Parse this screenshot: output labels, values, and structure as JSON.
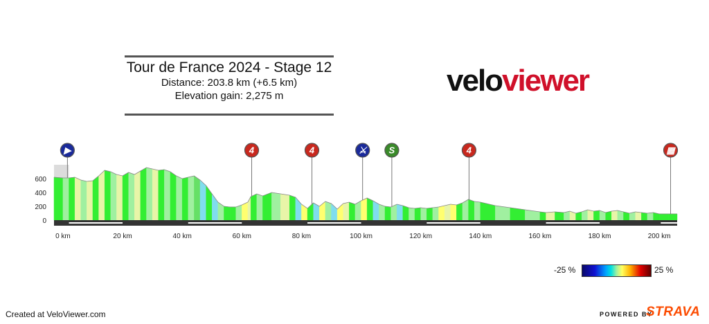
{
  "header": {
    "title": "Tour de France 2024 - Stage 12",
    "distance": "Distance: 203.8 km (+6.5 km)",
    "elevation": "Elevation gain: 2,275 m"
  },
  "logo": {
    "part1": "velo",
    "part2": "viewer",
    "colors": {
      "velo": "#111111",
      "viewer": "#d0102a"
    }
  },
  "chart_data": {
    "type": "area",
    "xlabel": "",
    "ylabel": "",
    "xlim": [
      -3,
      206
    ],
    "ylim": [
      0,
      800
    ],
    "x_ticks": [
      0,
      20,
      40,
      60,
      80,
      100,
      120,
      140,
      160,
      180,
      200
    ],
    "x_tick_labels": [
      "0 km",
      "20 km",
      "40 km",
      "60 km",
      "80 km",
      "100 km",
      "120 km",
      "140 km",
      "160 km",
      "180 km",
      "200 km"
    ],
    "y_ticks": [
      0,
      200,
      400,
      600
    ],
    "y_tick_labels": [
      "0",
      "200",
      "400",
      "600"
    ],
    "profile": {
      "x": [
        -3,
        0,
        2,
        4,
        6,
        8,
        10,
        12,
        14,
        16,
        18,
        20,
        22,
        24,
        26,
        28,
        30,
        32,
        34,
        36,
        38,
        40,
        42,
        44,
        46,
        48,
        50,
        52,
        54,
        56,
        58,
        60,
        62,
        63,
        65,
        67,
        70,
        73,
        76,
        78,
        80,
        82,
        84,
        86,
        88,
        90,
        92,
        94,
        96,
        98,
        100,
        102,
        104,
        106,
        108,
        110,
        112,
        114,
        116,
        118,
        120,
        122,
        124,
        126,
        128,
        130,
        132,
        134,
        136,
        138,
        140,
        145,
        150,
        155,
        160,
        162,
        165,
        168,
        170,
        172,
        174,
        176,
        178,
        180,
        182,
        184,
        186,
        188,
        190,
        192,
        194,
        196,
        198,
        200,
        203,
        206
      ],
      "elevation": [
        620,
        610,
        610,
        620,
        580,
        560,
        570,
        640,
        720,
        700,
        660,
        640,
        690,
        660,
        710,
        760,
        740,
        720,
        730,
        700,
        640,
        600,
        620,
        640,
        580,
        500,
        380,
        260,
        200,
        190,
        190,
        220,
        260,
        340,
        380,
        350,
        400,
        380,
        360,
        330,
        230,
        170,
        250,
        200,
        270,
        240,
        160,
        240,
        260,
        230,
        280,
        320,
        280,
        230,
        200,
        190,
        230,
        210,
        180,
        170,
        180,
        170,
        180,
        190,
        210,
        230,
        220,
        250,
        300,
        270,
        260,
        210,
        180,
        150,
        120,
        110,
        120,
        110,
        130,
        100,
        120,
        150,
        130,
        140,
        110,
        130,
        140,
        120,
        100,
        120,
        110,
        100,
        110,
        90,
        90,
        90
      ],
      "grade_colors": [
        "#33ee33",
        "#a0f0a0",
        "#33ee33",
        "#e8f5a8",
        "#a0f0a0",
        "#e8f5a8",
        "#33ee33",
        "#e8f5a8",
        "#33ee33",
        "#a0f0a0",
        "#e8f5a8",
        "#33ee33",
        "#a0f0a0",
        "#e8f5a8",
        "#33ee33",
        "#a0f0a0",
        "#e8f5a8",
        "#33ee33",
        "#a0f0a0",
        "#33ee33",
        "#a0f0a0",
        "#33ee33",
        "#a0f0a0",
        "#66e066",
        "#80ddee",
        "#33ee33",
        "#80ddee",
        "#a0f0a0",
        "#33ee33",
        "#33ee33",
        "#a0f0a0",
        "#ffff70",
        "#e8f5a8",
        "#33ee33",
        "#a0f0a0",
        "#33ee33",
        "#a0f0a0",
        "#e8f5a8",
        "#33ee33",
        "#80ddee",
        "#ffff70",
        "#33ee33",
        "#80ddee",
        "#ffff70",
        "#a0f0a0",
        "#80ddee",
        "#ffff70",
        "#e8f5a8",
        "#33ee33",
        "#a0f0a0",
        "#ffff70",
        "#33ee33",
        "#80ddee",
        "#a0f0a0",
        "#33ee33",
        "#a0f0a0",
        "#80ddee",
        "#33ee33",
        "#a0f0a0",
        "#33ee33",
        "#a0f0a0",
        "#33ee33",
        "#a0f0a0",
        "#ffff70",
        "#e8f5a8",
        "#ffff70",
        "#33ee33",
        "#a0f0a0",
        "#33ee33",
        "#a0f0a0",
        "#33ee33",
        "#a0f0a0",
        "#33ee33",
        "#a0f0a0",
        "#33ee33",
        "#e8f5a8",
        "#33ee33",
        "#a0f0a0",
        "#e8f5a8",
        "#33ee33",
        "#a0f0a0",
        "#e8f5a8",
        "#33ee33",
        "#a0f0a0",
        "#33ee33",
        "#e8f5a8",
        "#a0f0a0",
        "#33ee33",
        "#a0f0a0",
        "#e8f5a8",
        "#33ee33",
        "#a0f0a0",
        "#33ee33",
        "#33ee33",
        "#33ee33"
      ]
    },
    "markers": [
      {
        "name": "start",
        "km": 1.5,
        "label": "▶",
        "color": "#1a2a9a"
      },
      {
        "name": "climb-cat4-1",
        "km": 63.3,
        "label": "4",
        "color": "#c8281e"
      },
      {
        "name": "climb-cat4-2",
        "km": 83.5,
        "label": "4",
        "color": "#c8281e"
      },
      {
        "name": "feed-zone",
        "km": 100.5,
        "label": "⚔",
        "color": "#1a2a9a"
      },
      {
        "name": "intermediate-sprint",
        "km": 110.3,
        "label": "S",
        "color": "#3a8a2a"
      },
      {
        "name": "climb-cat4-3",
        "km": 136.2,
        "label": "4",
        "color": "#c8281e"
      },
      {
        "name": "finish",
        "km": 203.8,
        "label": "▦",
        "color": "#c8281e"
      }
    ],
    "legend": {
      "min_label": "-25 %",
      "max_label": "25 %"
    }
  },
  "footer": {
    "created": "Created at VeloViewer.com",
    "powered": "POWERED BY",
    "strava": "STRAVA",
    "strava_color": "#fc4c02"
  }
}
